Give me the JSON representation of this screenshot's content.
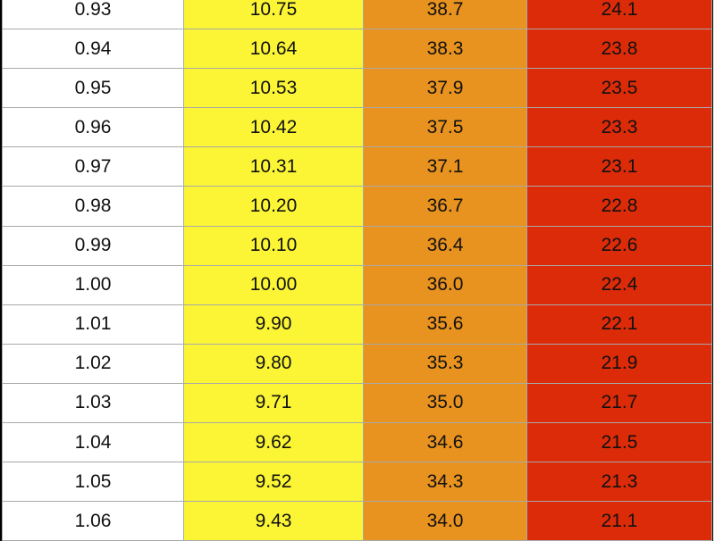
{
  "table": {
    "colors": {
      "col0": "#ffffff",
      "col1": "#fbf536",
      "col2": "#e8921f",
      "col3": "#dc2b08"
    },
    "rows": [
      [
        "0.93",
        "10.75",
        "38.7",
        "24.1"
      ],
      [
        "0.94",
        "10.64",
        "38.3",
        "23.8"
      ],
      [
        "0.95",
        "10.53",
        "37.9",
        "23.5"
      ],
      [
        "0.96",
        "10.42",
        "37.5",
        "23.3"
      ],
      [
        "0.97",
        "10.31",
        "37.1",
        "23.1"
      ],
      [
        "0.98",
        "10.20",
        "36.7",
        "22.8"
      ],
      [
        "0.99",
        "10.10",
        "36.4",
        "22.6"
      ],
      [
        "1.00",
        "10.00",
        "36.0",
        "22.4"
      ],
      [
        "1.01",
        "9.90",
        "35.6",
        "22.1"
      ],
      [
        "1.02",
        "9.80",
        "35.3",
        "21.9"
      ],
      [
        "1.03",
        "9.71",
        "35.0",
        "21.7"
      ],
      [
        "1.04",
        "9.62",
        "34.6",
        "21.5"
      ],
      [
        "1.05",
        "9.52",
        "34.3",
        "21.3"
      ],
      [
        "1.06",
        "9.43",
        "34.0",
        "21.1"
      ]
    ]
  }
}
